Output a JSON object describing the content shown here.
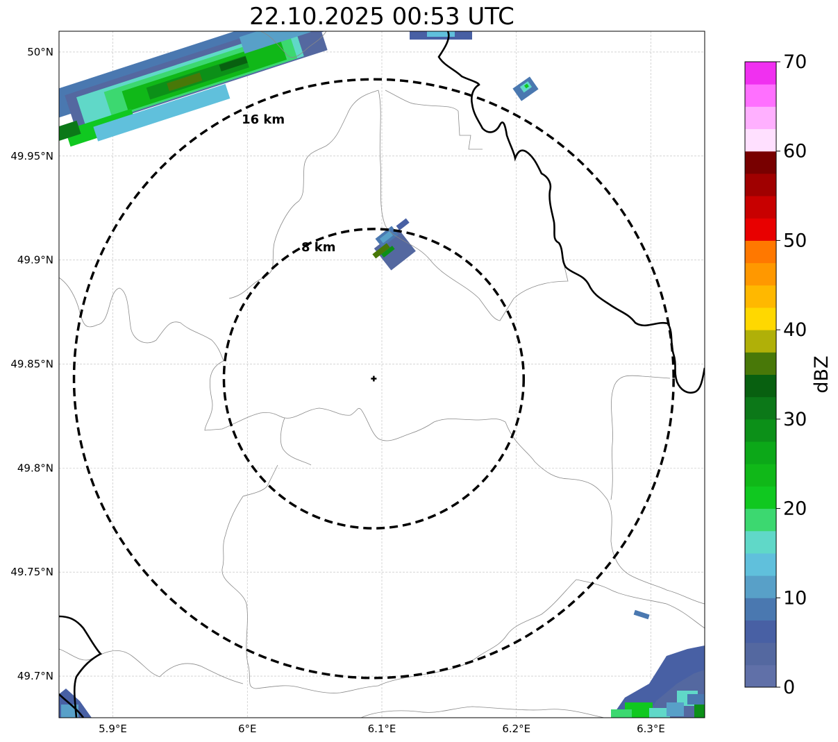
{
  "title": "22.10.2025 00:53 UTC",
  "map": {
    "lon_range": [
      5.86,
      6.34
    ],
    "lat_range": [
      49.68,
      50.01
    ],
    "lon_ticks": [
      {
        "value": 5.9,
        "label": "5.9°E"
      },
      {
        "value": 6.0,
        "label": "6°E"
      },
      {
        "value": 6.1,
        "label": "6.1°E"
      },
      {
        "value": 6.2,
        "label": "6.2°E"
      },
      {
        "value": 6.3,
        "label": "6.3°E"
      }
    ],
    "lat_ticks": [
      {
        "value": 49.7,
        "label": "49.7°N"
      },
      {
        "value": 49.75,
        "label": "49.75°N"
      },
      {
        "value": 49.8,
        "label": "49.8°N"
      },
      {
        "value": 49.85,
        "label": "49.85°N"
      },
      {
        "value": 49.9,
        "label": "49.9°N"
      },
      {
        "value": 49.95,
        "label": "49.95°N"
      },
      {
        "value": 50.0,
        "label": "50°N"
      }
    ],
    "gridlines": true,
    "radar_site": {
      "lon": 6.094,
      "lat": 49.843,
      "marker": "plus-icon"
    },
    "range_rings": [
      {
        "radius_km": 8,
        "label": "8 km"
      },
      {
        "radius_km": 16,
        "label": "16 km"
      }
    ]
  },
  "colorbar": {
    "label": "dBZ",
    "min": 0,
    "max": 70,
    "tick_labels": [
      "0",
      "10",
      "20",
      "30",
      "40",
      "50",
      "60",
      "70"
    ],
    "colors": [
      "#6070a8",
      "#5468a0",
      "#4860a4",
      "#4a78b0",
      "#58a0c8",
      "#60c0dc",
      "#60d8c8",
      "#3cd870",
      "#10c820",
      "#10b818",
      "#0ca818",
      "#0c9018",
      "#0c7818",
      "#086010",
      "#487808",
      "#b0b008",
      "#ffd800",
      "#ffb800",
      "#ff9800",
      "#ff7800",
      "#e80000",
      "#c80000",
      "#a00000",
      "#780000",
      "#ffe0ff",
      "#ffb0ff",
      "#ff70ff",
      "#f030f0"
    ]
  },
  "colors": {
    "border": "#000000",
    "admin_lines": "#888888",
    "grid": "#bbbbbb"
  }
}
